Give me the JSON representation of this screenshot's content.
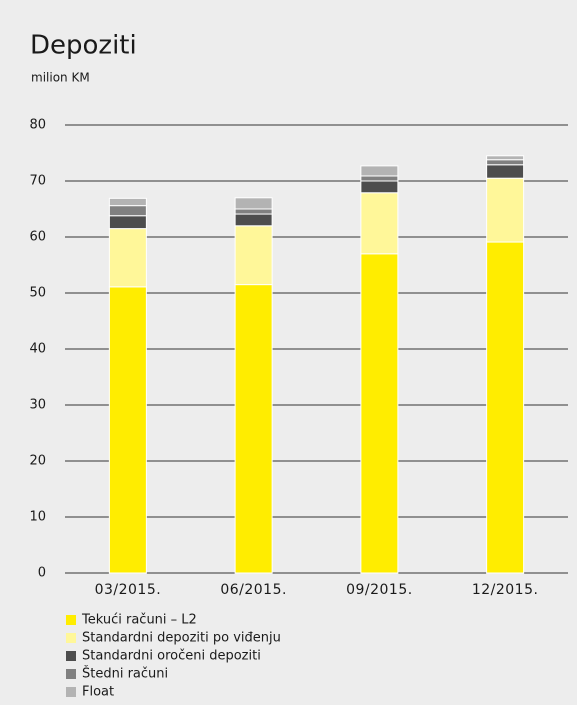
{
  "chart_data": {
    "type": "stacked_bar",
    "title": "Depoziti",
    "subtitle": "milion KM",
    "categories": [
      "03/2015.",
      "06/2015.",
      "09/2015.",
      "12/2015."
    ],
    "series": [
      {
        "name": "Tekući računi – L2",
        "color": "#ffed00",
        "values": [
          51.1,
          51.5,
          57.0,
          59.1
        ]
      },
      {
        "name": "Standardni depoziti po viđenju",
        "color": "#fff799",
        "values": [
          10.4,
          10.5,
          10.9,
          11.4
        ]
      },
      {
        "name": "Standardni oročeni depoziti",
        "color": "#4d4d4d",
        "values": [
          2.3,
          2.1,
          2.1,
          2.4
        ]
      },
      {
        "name": "Štedni računi",
        "color": "#808080",
        "values": [
          1.8,
          0.9,
          0.9,
          0.9
        ]
      },
      {
        "name": "Float",
        "color": "#b3b3b3",
        "values": [
          1.3,
          2.0,
          1.8,
          0.7
        ]
      }
    ],
    "ylim": [
      0,
      80
    ],
    "yticks": [
      0,
      10,
      20,
      30,
      40,
      50,
      60,
      70,
      80
    ],
    "grid": true
  }
}
